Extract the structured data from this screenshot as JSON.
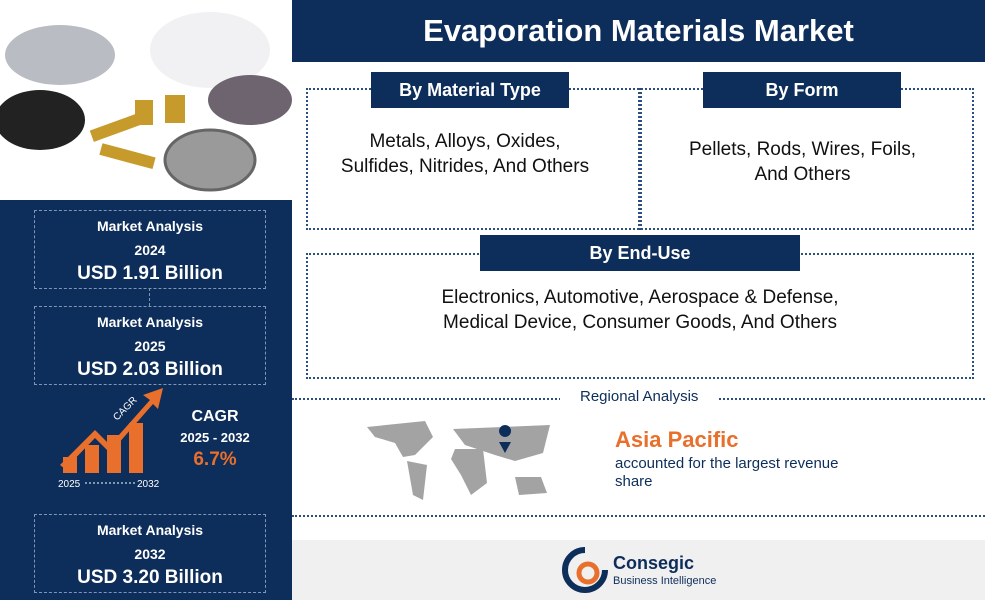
{
  "header": {
    "title": "Evaporation Materials Market"
  },
  "segments": [
    {
      "title": "By Material Type",
      "text": "Metals, Alloys, Oxides, Sulfides, Nitrides, And Others"
    },
    {
      "title": "By Form",
      "text": "Pellets, Rods, Wires, Foils, And Others"
    },
    {
      "title": "By End-Use",
      "text": "Electronics, Automotive, Aerospace & Defense, Medical Device, Consumer Goods, And Others"
    }
  ],
  "market": [
    {
      "label": "Market Analysis",
      "year": "2024",
      "value": "USD 1.91 Billion"
    },
    {
      "label": "Market Analysis",
      "year": "2025",
      "value": "USD 2.03 Billion"
    },
    {
      "label": "Market Analysis",
      "year": "2032",
      "value": "USD 3.20 Billion"
    }
  ],
  "cagr": {
    "label": "CAGR",
    "period": "2025 - 2032",
    "value": "6.7%",
    "icon_label": "CAGR",
    "icon_start": "2025",
    "icon_end": "2032"
  },
  "regional": {
    "title": "Regional Analysis",
    "region": "Asia Pacific",
    "text": "accounted for the largest revenue share"
  },
  "logo": {
    "name": "Consegic",
    "tagline": "Business Intelligence"
  }
}
